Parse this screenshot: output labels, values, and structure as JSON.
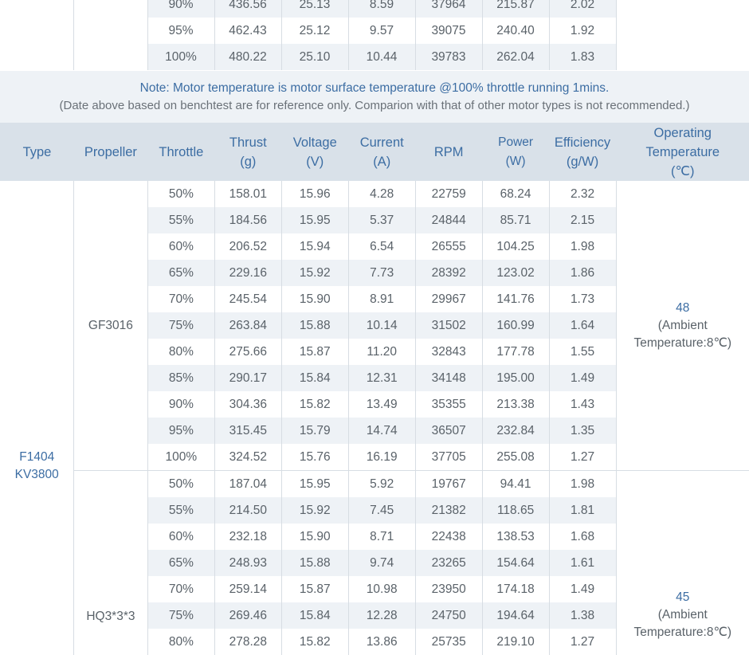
{
  "top_rows": [
    {
      "throttle": "90%",
      "thrust": "436.56",
      "voltage": "25.13",
      "current": "8.59",
      "rpm": "37964",
      "power": "215.87",
      "efficiency": "2.02"
    },
    {
      "throttle": "95%",
      "thrust": "462.43",
      "voltage": "25.12",
      "current": "9.57",
      "rpm": "39075",
      "power": "240.40",
      "efficiency": "1.92"
    },
    {
      "throttle": "100%",
      "thrust": "480.22",
      "voltage": "25.10",
      "current": "10.44",
      "rpm": "39783",
      "power": "262.04",
      "efficiency": "1.83"
    }
  ],
  "notes": {
    "main": "Note: Motor temperature is motor surface temperature @100% throttle running 1mins.",
    "sub": "(Date above based on benchtest are for reference only. Comparion with that of other motor types is not recommended.)"
  },
  "headers": {
    "type": "Type",
    "propeller": "Propeller",
    "throttle": "Throttle",
    "thrust": "Thrust",
    "thrust_unit": "(g)",
    "voltage": "Voltage",
    "voltage_unit": "(V)",
    "current": "Current",
    "current_unit": "(A)",
    "rpm": "RPM",
    "power": "Power",
    "power_unit": "(W)",
    "efficiency": "Efficiency",
    "efficiency_unit": "(g/W)",
    "operating_1": "Operating",
    "operating_2": "Temperature",
    "operating_3": "(℃)"
  },
  "motor": {
    "type_line1": "F1404",
    "type_line2": "KV3800"
  },
  "groups": [
    {
      "propeller": "GF3016",
      "op_value": "48",
      "op_note1": "(Ambient",
      "op_note2": "Temperature:8℃)",
      "rows": [
        {
          "throttle": "50%",
          "thrust": "158.01",
          "voltage": "15.96",
          "current": "4.28",
          "rpm": "22759",
          "power": "68.24",
          "efficiency": "2.32"
        },
        {
          "throttle": "55%",
          "thrust": "184.56",
          "voltage": "15.95",
          "current": "5.37",
          "rpm": "24844",
          "power": "85.71",
          "efficiency": "2.15"
        },
        {
          "throttle": "60%",
          "thrust": "206.52",
          "voltage": "15.94",
          "current": "6.54",
          "rpm": "26555",
          "power": "104.25",
          "efficiency": "1.98"
        },
        {
          "throttle": "65%",
          "thrust": "229.16",
          "voltage": "15.92",
          "current": "7.73",
          "rpm": "28392",
          "power": "123.02",
          "efficiency": "1.86"
        },
        {
          "throttle": "70%",
          "thrust": "245.54",
          "voltage": "15.90",
          "current": "8.91",
          "rpm": "29967",
          "power": "141.76",
          "efficiency": "1.73"
        },
        {
          "throttle": "75%",
          "thrust": "263.84",
          "voltage": "15.88",
          "current": "10.14",
          "rpm": "31502",
          "power": "160.99",
          "efficiency": "1.64"
        },
        {
          "throttle": "80%",
          "thrust": "275.66",
          "voltage": "15.87",
          "current": "11.20",
          "rpm": "32843",
          "power": "177.78",
          "efficiency": "1.55"
        },
        {
          "throttle": "85%",
          "thrust": "290.17",
          "voltage": "15.84",
          "current": "12.31",
          "rpm": "34148",
          "power": "195.00",
          "efficiency": "1.49"
        },
        {
          "throttle": "90%",
          "thrust": "304.36",
          "voltage": "15.82",
          "current": "13.49",
          "rpm": "35355",
          "power": "213.38",
          "efficiency": "1.43"
        },
        {
          "throttle": "95%",
          "thrust": "315.45",
          "voltage": "15.79",
          "current": "14.74",
          "rpm": "36507",
          "power": "232.84",
          "efficiency": "1.35"
        },
        {
          "throttle": "100%",
          "thrust": "324.52",
          "voltage": "15.76",
          "current": "16.19",
          "rpm": "37705",
          "power": "255.08",
          "efficiency": "1.27"
        }
      ]
    },
    {
      "propeller": "HQ3*3*3",
      "op_value": "45",
      "op_note1": "(Ambient",
      "op_note2": "Temperature:8℃)",
      "rows": [
        {
          "throttle": "50%",
          "thrust": "187.04",
          "voltage": "15.95",
          "current": "5.92",
          "rpm": "19767",
          "power": "94.41",
          "efficiency": "1.98"
        },
        {
          "throttle": "55%",
          "thrust": "214.50",
          "voltage": "15.92",
          "current": "7.45",
          "rpm": "21382",
          "power": "118.65",
          "efficiency": "1.81"
        },
        {
          "throttle": "60%",
          "thrust": "232.18",
          "voltage": "15.90",
          "current": "8.71",
          "rpm": "22438",
          "power": "138.53",
          "efficiency": "1.68"
        },
        {
          "throttle": "65%",
          "thrust": "248.93",
          "voltage": "15.88",
          "current": "9.74",
          "rpm": "23265",
          "power": "154.64",
          "efficiency": "1.61"
        },
        {
          "throttle": "70%",
          "thrust": "259.14",
          "voltage": "15.87",
          "current": "10.98",
          "rpm": "23950",
          "power": "174.18",
          "efficiency": "1.49"
        },
        {
          "throttle": "75%",
          "thrust": "269.46",
          "voltage": "15.84",
          "current": "12.28",
          "rpm": "24750",
          "power": "194.64",
          "efficiency": "1.38"
        },
        {
          "throttle": "80%",
          "thrust": "278.28",
          "voltage": "15.82",
          "current": "13.86",
          "rpm": "25735",
          "power": "219.10",
          "efficiency": "1.27"
        }
      ]
    }
  ]
}
